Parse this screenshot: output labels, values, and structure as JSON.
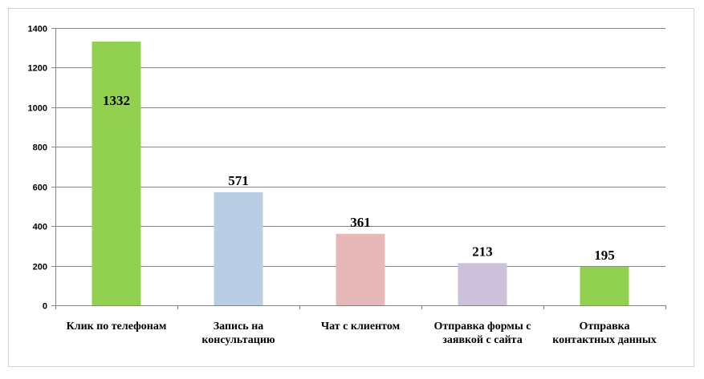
{
  "chart_data": {
    "type": "bar",
    "title": "",
    "xlabel": "",
    "ylabel": "",
    "categories": [
      [
        "Клик по телефонам"
      ],
      [
        "Запись на",
        "консультацию"
      ],
      [
        "Чат с клиентом"
      ],
      [
        "Отправка формы с",
        "заявкой с сайта"
      ],
      [
        "Отправка",
        "контактных данных"
      ]
    ],
    "values": [
      1332,
      571,
      361,
      213,
      195
    ],
    "data_labels": [
      "1332",
      "571",
      "361",
      "213",
      "195"
    ],
    "data_label_position": [
      "inside",
      "outside",
      "outside",
      "outside",
      "outside"
    ],
    "bar_colors": [
      "#92d050",
      "#b9cde5",
      "#e6b9b8",
      "#ccc1da",
      "#92d050"
    ],
    "ylim": [
      0,
      1400
    ],
    "yticks": [
      0,
      200,
      400,
      600,
      800,
      1000,
      1200,
      1400
    ],
    "grid": true,
    "legend": "none",
    "colors": {
      "gridline": "#868686",
      "axis": "#868686"
    }
  }
}
